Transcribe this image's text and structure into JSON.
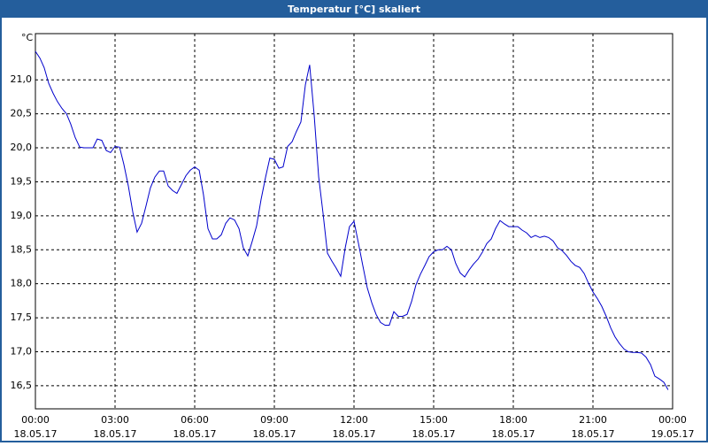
{
  "chart_data": {
    "type": "line",
    "title": "Temperatur [°C] skaliert",
    "ylabel": "°C",
    "x": [
      0,
      0.17,
      0.33,
      0.5,
      0.67,
      0.83,
      1,
      1.17,
      1.33,
      1.5,
      1.67,
      1.83,
      2,
      2.17,
      2.33,
      2.5,
      2.67,
      2.83,
      3,
      3.17,
      3.33,
      3.5,
      3.67,
      3.83,
      4,
      4.17,
      4.33,
      4.5,
      4.67,
      4.83,
      5,
      5.17,
      5.33,
      5.5,
      5.67,
      5.83,
      6,
      6.17,
      6.33,
      6.5,
      6.67,
      6.83,
      7,
      7.17,
      7.33,
      7.5,
      7.67,
      7.83,
      8,
      8.17,
      8.33,
      8.5,
      8.67,
      8.83,
      9,
      9.17,
      9.33,
      9.5,
      9.67,
      9.83,
      10,
      10.17,
      10.33,
      10.5,
      10.67,
      10.83,
      11,
      11.17,
      11.33,
      11.5,
      11.67,
      11.83,
      12,
      12.17,
      12.33,
      12.5,
      12.67,
      12.83,
      13,
      13.17,
      13.33,
      13.5,
      13.67,
      13.83,
      14,
      14.17,
      14.33,
      14.5,
      14.67,
      14.83,
      15,
      15.17,
      15.33,
      15.5,
      15.67,
      15.83,
      16,
      16.17,
      16.33,
      16.5,
      16.67,
      16.83,
      17,
      17.17,
      17.33,
      17.5,
      17.67,
      17.83,
      18,
      18.17,
      18.33,
      18.5,
      18.67,
      18.83,
      19,
      19.17,
      19.33,
      19.5,
      19.67,
      19.83,
      20,
      20.17,
      20.33,
      20.5,
      20.67,
      20.83,
      21,
      21.17,
      21.33,
      21.5,
      21.67,
      21.83,
      22,
      22.17,
      22.33,
      22.5,
      22.67,
      22.83,
      23,
      23.17,
      23.33,
      23.5,
      23.67,
      23.83
    ],
    "series": [
      {
        "color": "#0000cc",
        "values": [
          21.42,
          21.32,
          21.18,
          20.95,
          20.8,
          20.68,
          20.58,
          20.5,
          20.35,
          20.15,
          20.01,
          20.0,
          20.0,
          20.0,
          20.13,
          20.11,
          19.96,
          19.93,
          20.02,
          20.01,
          19.76,
          19.44,
          19.05,
          18.76,
          18.89,
          19.15,
          19.41,
          19.57,
          19.66,
          19.66,
          19.44,
          19.37,
          19.33,
          19.46,
          19.59,
          19.67,
          19.72,
          19.67,
          19.31,
          18.81,
          18.66,
          18.66,
          18.72,
          18.89,
          18.97,
          18.94,
          18.81,
          18.53,
          18.41,
          18.63,
          18.85,
          19.24,
          19.57,
          19.85,
          19.83,
          19.7,
          19.72,
          20.02,
          20.09,
          20.24,
          20.38,
          20.93,
          21.22,
          20.48,
          19.57,
          19.05,
          18.45,
          18.33,
          18.23,
          18.11,
          18.53,
          18.84,
          18.92,
          18.59,
          18.27,
          17.94,
          17.72,
          17.55,
          17.43,
          17.39,
          17.39,
          17.59,
          17.52,
          17.52,
          17.55,
          17.74,
          17.98,
          18.14,
          18.27,
          18.4,
          18.47,
          18.5,
          18.5,
          18.55,
          18.5,
          18.3,
          18.16,
          18.1,
          18.2,
          18.29,
          18.36,
          18.46,
          18.59,
          18.66,
          18.81,
          18.93,
          18.88,
          18.84,
          18.84,
          18.84,
          18.79,
          18.75,
          18.68,
          18.71,
          18.68,
          18.7,
          18.68,
          18.63,
          18.53,
          18.49,
          18.42,
          18.33,
          18.27,
          18.24,
          18.15,
          18.01,
          17.88,
          17.78,
          17.67,
          17.52,
          17.35,
          17.22,
          17.12,
          17.04,
          17.0,
          16.99,
          16.99,
          16.98,
          16.92,
          16.81,
          16.64,
          16.6,
          16.55,
          16.44
        ]
      }
    ],
    "xlim": [
      0,
      24
    ],
    "xticks": [
      {
        "value": 0,
        "label": "00:00"
      },
      {
        "value": 3,
        "label": "03:00"
      },
      {
        "value": 6,
        "label": "06:00"
      },
      {
        "value": 9,
        "label": "09:00"
      },
      {
        "value": 12,
        "label": "12:00"
      },
      {
        "value": 15,
        "label": "15:00"
      },
      {
        "value": 18,
        "label": "18:00"
      },
      {
        "value": 21,
        "label": "21:00"
      },
      {
        "value": 24,
        "label": "00:00"
      }
    ],
    "xtick_dates": [
      "18.05.17",
      "18.05.17",
      "18.05.17",
      "18.05.17",
      "18.05.17",
      "18.05.17",
      "18.05.17",
      "18.05.17",
      "19.05.17"
    ],
    "ylim": [
      16.16,
      21.68
    ],
    "yticks": [
      {
        "value": 16.5,
        "label": "16,5"
      },
      {
        "value": 17,
        "label": "17,0"
      },
      {
        "value": 17.5,
        "label": "17,5"
      },
      {
        "value": 18,
        "label": "18,0"
      },
      {
        "value": 18.5,
        "label": "18,5"
      },
      {
        "value": 19,
        "label": "19,0"
      },
      {
        "value": 19.5,
        "label": "19,5"
      },
      {
        "value": 20,
        "label": "20,0"
      },
      {
        "value": 20.5,
        "label": "20,5"
      },
      {
        "value": 21,
        "label": "21,0"
      }
    ],
    "grid": true
  }
}
